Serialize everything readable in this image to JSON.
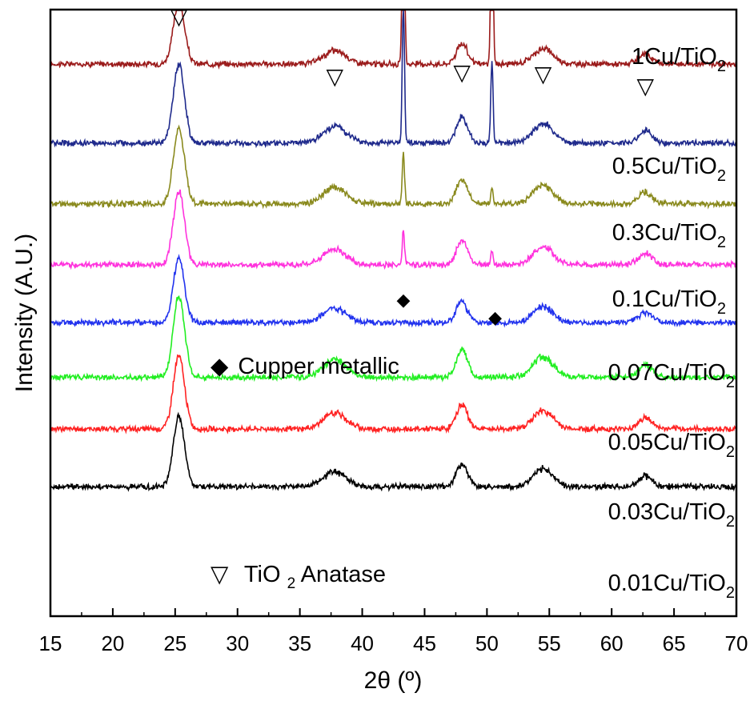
{
  "chart_data": {
    "type": "line",
    "xlabel": "2θ (º)",
    "ylabel": "Intensity (A.U.)",
    "xlim": [
      15,
      70
    ],
    "xticks": [
      "15",
      "20",
      "25",
      "30",
      "35",
      "40",
      "45",
      "50",
      "55",
      "60",
      "65",
      "70"
    ],
    "y_ticks_shown": false,
    "grid": false,
    "peaks_anatase": [
      25.3,
      37.8,
      48.0,
      54.5,
      62.7
    ],
    "peaks_copper": [
      43.3,
      50.4
    ],
    "series": [
      {
        "name": "1Cu/TiO",
        "sub": "2",
        "color": "#9b1b1b",
        "baseline": 2.0,
        "anatase_height": 1.0,
        "copper_heights": [
          4.2,
          3.5
        ]
      },
      {
        "name": "0.5Cu/TiO",
        "sub": "2",
        "color": "#1f2a8c",
        "baseline": 3.3,
        "anatase_height": 1.3,
        "copper_heights": [
          2.3,
          1.35
        ]
      },
      {
        "name": "0.3Cu/TiO",
        "sub": "2",
        "color": "#8a8a1e",
        "baseline": 4.3,
        "anatase_height": 1.25,
        "copper_heights": [
          0.85,
          0.28
        ]
      },
      {
        "name": "0.1Cu/TiO",
        "sub": "2",
        "color": "#ff33dd",
        "baseline": 5.3,
        "anatase_height": 1.2,
        "copper_heights": [
          0.55,
          0.25
        ]
      },
      {
        "name": "0.07Cu/TiO",
        "sub": "2",
        "color": "#2233ee",
        "baseline": 6.25,
        "anatase_height": 1.05,
        "copper_heights": [
          0,
          0
        ]
      },
      {
        "name": "0.05Cu/TiO",
        "sub": "2",
        "color": "#22ee22",
        "baseline": 7.15,
        "anatase_height": 1.35,
        "copper_heights": [
          0,
          0
        ]
      },
      {
        "name": "0.03Cu/TiO",
        "sub": "2",
        "color": "#ff2222",
        "baseline": 8.0,
        "anatase_height": 1.2,
        "copper_heights": [
          0,
          0
        ]
      },
      {
        "name": "0.01Cu/TiO",
        "sub": "2",
        "color": "#000000",
        "baseline": 8.95,
        "anatase_height": 1.15,
        "copper_heights": [
          0,
          0
        ]
      }
    ],
    "annotations": {
      "cupper": {
        "marker": "◆",
        "text": "Cupper metallic"
      },
      "anatase": {
        "marker": "▽",
        "text_pre": "TiO",
        "sub": "2",
        "text_post": " Anatase"
      }
    }
  }
}
